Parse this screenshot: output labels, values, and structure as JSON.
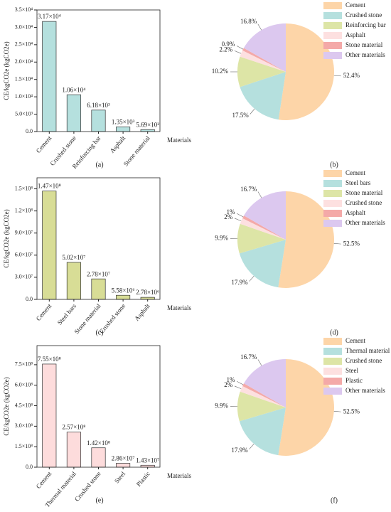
{
  "chart_data": [
    {
      "type": "bar",
      "caption": "(a)",
      "y_label": "CE/kgCO2e (kgCO2e)",
      "x_label": "Materials",
      "categories": [
        "Cement",
        "Crushed stone",
        "Reinforcing bar",
        "Asphalt",
        "Stone material"
      ],
      "values": [
        31700,
        10600,
        6180,
        1350,
        569
      ],
      "value_labels": [
        "3.17×10⁴",
        "1.06×10⁴",
        "6.18×10³",
        "1.35×10³",
        "5.69×10²"
      ],
      "color": "#b5e0de",
      "ylim": [
        0,
        35000
      ],
      "yticks": [
        {
          "value": 0,
          "label": "0.0"
        },
        {
          "value": 5000,
          "label": "5.0×10³"
        },
        {
          "value": 10000,
          "label": "1.0×10⁴"
        },
        {
          "value": 15000,
          "label": "1.5×10⁴"
        },
        {
          "value": 20000,
          "label": "2.0×10⁴"
        },
        {
          "value": 25000,
          "label": "2.5×10⁴"
        },
        {
          "value": 30000,
          "label": "3.0×10⁴"
        },
        {
          "value": 35000,
          "label": "3.5×10⁴"
        }
      ]
    },
    {
      "type": "pie",
      "caption": "(b)",
      "categories": [
        "Cement",
        "Crushed stone",
        "Reinforcing bar",
        "Asphalt",
        "Stone material",
        "Other materials"
      ],
      "values": [
        52.4,
        17.5,
        10.2,
        2.2,
        0.9,
        16.8
      ],
      "value_labels": [
        "52.4%",
        "17.5%",
        "10.2%",
        "2.2%",
        "0.9%",
        "16.8%"
      ],
      "colors": [
        "#fdd5a8",
        "#b5e0de",
        "#dde5a6",
        "#fde0e0",
        "#f4a9a8",
        "#dcc8ef"
      ]
    },
    {
      "type": "bar",
      "caption": "(c)",
      "y_label": "CE/kgCO2e (kgCO2e)",
      "x_label": "Materials",
      "categories": [
        "Cement",
        "Steel bars",
        "Stone material",
        "Crushed stone",
        "Asphalt"
      ],
      "values": [
        147000000,
        50200000,
        27800000,
        5580000,
        2780000
      ],
      "value_labels": [
        "1.47×10⁸",
        "5.02×10⁷",
        "2.78×10⁷",
        "5.58×10⁶",
        "2.78×10⁶"
      ],
      "color": "#d8dd96",
      "ylim": [
        0,
        165000000
      ],
      "yticks": [
        {
          "value": 0,
          "label": "0.0"
        },
        {
          "value": 30000000,
          "label": "3.0×10⁷"
        },
        {
          "value": 60000000,
          "label": "6.0×10⁷"
        },
        {
          "value": 90000000,
          "label": "9.0×10⁷"
        },
        {
          "value": 120000000,
          "label": "1.2×10⁸"
        },
        {
          "value": 150000000,
          "label": "1.5×10⁸"
        }
      ]
    },
    {
      "type": "pie",
      "caption": "(d)",
      "categories": [
        "Cement",
        "Steel bars",
        "Stone material",
        "Crushed stone",
        "Asphalt",
        "Other materials"
      ],
      "values": [
        52.5,
        17.9,
        9.9,
        2,
        1,
        16.7
      ],
      "value_labels": [
        "52.5%",
        "17.9%",
        "9.9%",
        "2%",
        "1%",
        "16.7%"
      ],
      "colors": [
        "#fdd5a8",
        "#b5e0de",
        "#dde5a6",
        "#fde0e0",
        "#f4a9a8",
        "#dcc8ef"
      ]
    },
    {
      "type": "bar",
      "caption": "(e)",
      "y_label": "CE/kgCO2e (kgCO2e)",
      "x_label": "Materials",
      "categories": [
        "Cement",
        "Thermal material",
        "Crushed stone",
        "Steel",
        "Plastic"
      ],
      "values": [
        755000000,
        257000000,
        142000000,
        28600000,
        14300000
      ],
      "value_labels": [
        "7.55×10⁸",
        "2.57×10⁸",
        "1.42×10⁸",
        "2.86×10⁷",
        "1.43×10⁷"
      ],
      "color": "#fddcdc",
      "ylim": [
        0,
        890000000
      ],
      "yticks": [
        {
          "value": 0,
          "label": "0.0"
        },
        {
          "value": 150000000,
          "label": "1.5×10⁸"
        },
        {
          "value": 300000000,
          "label": "3.0×10⁸"
        },
        {
          "value": 450000000,
          "label": "4.5×10⁸"
        },
        {
          "value": 600000000,
          "label": "6.0×10⁸"
        },
        {
          "value": 750000000,
          "label": "7.5×10⁸"
        }
      ]
    },
    {
      "type": "pie",
      "caption": "(f)",
      "categories": [
        "Cement",
        "Thermal material",
        "Crushed stone",
        "Steel",
        "Plastic",
        "Other materials"
      ],
      "values": [
        52.5,
        17.9,
        9.9,
        2,
        1,
        16.7
      ],
      "value_labels": [
        "52.5%",
        "17.9%",
        "9.9%",
        "2%",
        "1%",
        "16.7%"
      ],
      "colors": [
        "#fdd5a8",
        "#b5e0de",
        "#dde5a6",
        "#fde0e0",
        "#f4a9a8",
        "#dcc8ef"
      ]
    }
  ]
}
